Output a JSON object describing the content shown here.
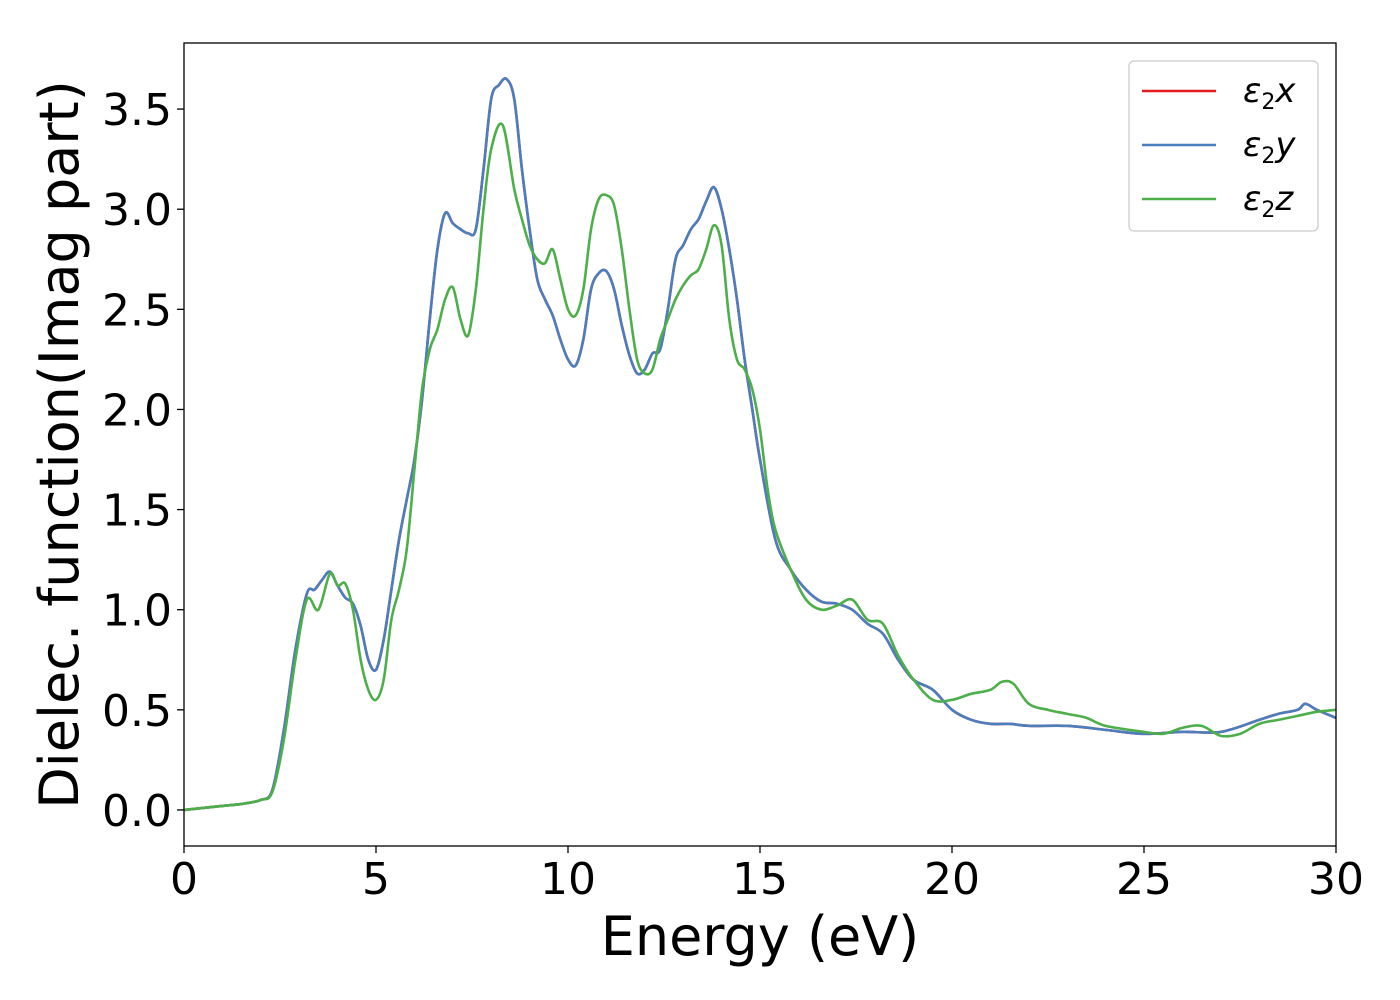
{
  "chart_data": {
    "type": "line",
    "title": "",
    "xlabel": "Energy (eV)",
    "ylabel": "Dielec. function(Imag part)",
    "xlim": [
      0,
      30
    ],
    "ylim": [
      -0.18,
      3.83
    ],
    "xticks": [
      0,
      5,
      10,
      15,
      20,
      25,
      30
    ],
    "yticks": [
      0.0,
      0.5,
      1.0,
      1.5,
      2.0,
      2.5,
      3.0,
      3.5
    ],
    "xtick_labels": [
      "0",
      "5",
      "10",
      "15",
      "20",
      "25",
      "30"
    ],
    "ytick_labels": [
      "0.0",
      "0.5",
      "1.0",
      "1.5",
      "2.0",
      "2.5",
      "3.0",
      "3.5"
    ],
    "grid": false,
    "legend_position": "top-right",
    "series": [
      {
        "name": "ε₂x",
        "legend_symbol": "ε",
        "legend_sub": "2",
        "legend_suffix": "x",
        "color": "#e41a1c",
        "x": [
          0,
          0.5,
          1,
          1.5,
          2,
          2.3,
          2.6,
          2.9,
          3.2,
          3.4,
          3.6,
          3.8,
          4.0,
          4.2,
          4.4,
          4.6,
          4.8,
          5.0,
          5.2,
          5.4,
          5.6,
          5.8,
          6.0,
          6.2,
          6.4,
          6.6,
          6.8,
          7.0,
          7.2,
          7.4,
          7.6,
          7.8,
          8.0,
          8.2,
          8.4,
          8.6,
          8.8,
          9.0,
          9.2,
          9.4,
          9.6,
          9.8,
          10.0,
          10.2,
          10.4,
          10.6,
          10.8,
          11.0,
          11.2,
          11.4,
          11.6,
          11.8,
          12.0,
          12.2,
          12.4,
          12.6,
          12.8,
          13.0,
          13.2,
          13.4,
          13.6,
          13.8,
          14.0,
          14.2,
          14.4,
          14.6,
          14.8,
          15.0,
          15.4,
          15.8,
          16.2,
          16.6,
          17.0,
          17.4,
          17.8,
          18.2,
          18.6,
          19.0,
          19.5,
          20.0,
          20.5,
          21.0,
          21.5,
          22,
          23,
          24,
          25,
          26,
          27,
          28,
          28.5,
          29,
          29.2,
          29.5,
          30
        ],
        "y": [
          0.0,
          0.01,
          0.02,
          0.03,
          0.05,
          0.1,
          0.4,
          0.8,
          1.08,
          1.1,
          1.15,
          1.19,
          1.12,
          1.06,
          1.03,
          0.92,
          0.75,
          0.7,
          0.85,
          1.1,
          1.35,
          1.55,
          1.75,
          2.05,
          2.45,
          2.8,
          2.98,
          2.93,
          2.9,
          2.88,
          2.9,
          3.2,
          3.55,
          3.62,
          3.65,
          3.55,
          3.2,
          2.9,
          2.65,
          2.55,
          2.47,
          2.35,
          2.25,
          2.22,
          2.35,
          2.6,
          2.68,
          2.69,
          2.6,
          2.42,
          2.27,
          2.18,
          2.2,
          2.28,
          2.3,
          2.5,
          2.75,
          2.82,
          2.9,
          2.95,
          3.04,
          3.11,
          3.0,
          2.8,
          2.55,
          2.25,
          2.0,
          1.75,
          1.35,
          1.2,
          1.1,
          1.04,
          1.03,
          1.0,
          0.93,
          0.88,
          0.75,
          0.65,
          0.6,
          0.5,
          0.45,
          0.43,
          0.43,
          0.42,
          0.42,
          0.4,
          0.38,
          0.39,
          0.39,
          0.45,
          0.48,
          0.5,
          0.53,
          0.5,
          0.46
        ]
      },
      {
        "name": "ε₂y",
        "legend_symbol": "ε",
        "legend_sub": "2",
        "legend_suffix": "y",
        "color": "#4a7fbf",
        "x": [
          0,
          0.5,
          1,
          1.5,
          2,
          2.3,
          2.6,
          2.9,
          3.2,
          3.4,
          3.6,
          3.8,
          4.0,
          4.2,
          4.4,
          4.6,
          4.8,
          5.0,
          5.2,
          5.4,
          5.6,
          5.8,
          6.0,
          6.2,
          6.4,
          6.6,
          6.8,
          7.0,
          7.2,
          7.4,
          7.6,
          7.8,
          8.0,
          8.2,
          8.4,
          8.6,
          8.8,
          9.0,
          9.2,
          9.4,
          9.6,
          9.8,
          10.0,
          10.2,
          10.4,
          10.6,
          10.8,
          11.0,
          11.2,
          11.4,
          11.6,
          11.8,
          12.0,
          12.2,
          12.4,
          12.6,
          12.8,
          13.0,
          13.2,
          13.4,
          13.6,
          13.8,
          14.0,
          14.2,
          14.4,
          14.6,
          14.8,
          15.0,
          15.4,
          15.8,
          16.2,
          16.6,
          17.0,
          17.4,
          17.8,
          18.2,
          18.6,
          19.0,
          19.5,
          20.0,
          20.5,
          21.0,
          21.5,
          22,
          23,
          24,
          25,
          26,
          27,
          28,
          28.5,
          29,
          29.2,
          29.5,
          30
        ],
        "y": [
          0.0,
          0.01,
          0.02,
          0.03,
          0.05,
          0.1,
          0.4,
          0.8,
          1.08,
          1.1,
          1.15,
          1.19,
          1.12,
          1.06,
          1.03,
          0.92,
          0.75,
          0.7,
          0.85,
          1.1,
          1.35,
          1.55,
          1.75,
          2.05,
          2.45,
          2.8,
          2.98,
          2.93,
          2.9,
          2.88,
          2.9,
          3.2,
          3.55,
          3.62,
          3.65,
          3.55,
          3.2,
          2.9,
          2.65,
          2.55,
          2.47,
          2.35,
          2.25,
          2.22,
          2.35,
          2.6,
          2.68,
          2.69,
          2.6,
          2.42,
          2.27,
          2.18,
          2.2,
          2.28,
          2.3,
          2.5,
          2.75,
          2.82,
          2.9,
          2.95,
          3.04,
          3.11,
          3.0,
          2.8,
          2.55,
          2.25,
          2.0,
          1.75,
          1.35,
          1.2,
          1.1,
          1.04,
          1.03,
          1.0,
          0.93,
          0.88,
          0.75,
          0.65,
          0.6,
          0.5,
          0.45,
          0.43,
          0.43,
          0.42,
          0.42,
          0.4,
          0.38,
          0.39,
          0.39,
          0.45,
          0.48,
          0.5,
          0.53,
          0.5,
          0.46
        ]
      },
      {
        "name": "ε₂z",
        "legend_symbol": "ε",
        "legend_sub": "2",
        "legend_suffix": "z",
        "color": "#4daf4a",
        "x": [
          0,
          0.5,
          1,
          1.5,
          2,
          2.3,
          2.6,
          2.9,
          3.2,
          3.5,
          3.8,
          4.0,
          4.2,
          4.4,
          4.6,
          4.8,
          5.0,
          5.2,
          5.4,
          5.6,
          5.8,
          6.0,
          6.2,
          6.4,
          6.6,
          6.8,
          7.0,
          7.2,
          7.4,
          7.6,
          7.8,
          8.0,
          8.3,
          8.6,
          8.8,
          9.0,
          9.2,
          9.4,
          9.6,
          9.8,
          10.0,
          10.2,
          10.4,
          10.6,
          10.8,
          11.0,
          11.2,
          11.4,
          11.6,
          11.8,
          12.0,
          12.2,
          12.4,
          12.6,
          12.8,
          13.0,
          13.2,
          13.4,
          13.6,
          13.8,
          14.0,
          14.2,
          14.4,
          14.6,
          14.8,
          15.0,
          15.2,
          15.4,
          15.8,
          16.2,
          16.6,
          17.0,
          17.4,
          17.8,
          18.2,
          18.6,
          19.0,
          19.5,
          20.0,
          20.5,
          21.0,
          21.3,
          21.6,
          22,
          22.5,
          23,
          23.5,
          24,
          25,
          25.5,
          26,
          26.5,
          27,
          27.5,
          28,
          28.5,
          29,
          29.5,
          30
        ],
        "y": [
          0.0,
          0.01,
          0.02,
          0.03,
          0.05,
          0.09,
          0.35,
          0.75,
          1.05,
          1.0,
          1.18,
          1.12,
          1.13,
          1.0,
          0.75,
          0.6,
          0.55,
          0.65,
          0.95,
          1.1,
          1.3,
          1.7,
          2.1,
          2.3,
          2.4,
          2.55,
          2.61,
          2.45,
          2.37,
          2.6,
          3.0,
          3.3,
          3.42,
          3.1,
          2.95,
          2.82,
          2.75,
          2.73,
          2.8,
          2.65,
          2.5,
          2.47,
          2.6,
          2.9,
          3.05,
          3.07,
          3.02,
          2.8,
          2.5,
          2.25,
          2.18,
          2.2,
          2.35,
          2.45,
          2.55,
          2.62,
          2.67,
          2.7,
          2.8,
          2.92,
          2.82,
          2.45,
          2.25,
          2.2,
          2.1,
          1.9,
          1.6,
          1.4,
          1.2,
          1.05,
          1.0,
          1.02,
          1.05,
          0.95,
          0.93,
          0.77,
          0.65,
          0.55,
          0.55,
          0.58,
          0.6,
          0.64,
          0.63,
          0.53,
          0.5,
          0.48,
          0.46,
          0.42,
          0.39,
          0.38,
          0.41,
          0.42,
          0.37,
          0.38,
          0.43,
          0.45,
          0.47,
          0.49,
          0.5
        ]
      }
    ]
  }
}
